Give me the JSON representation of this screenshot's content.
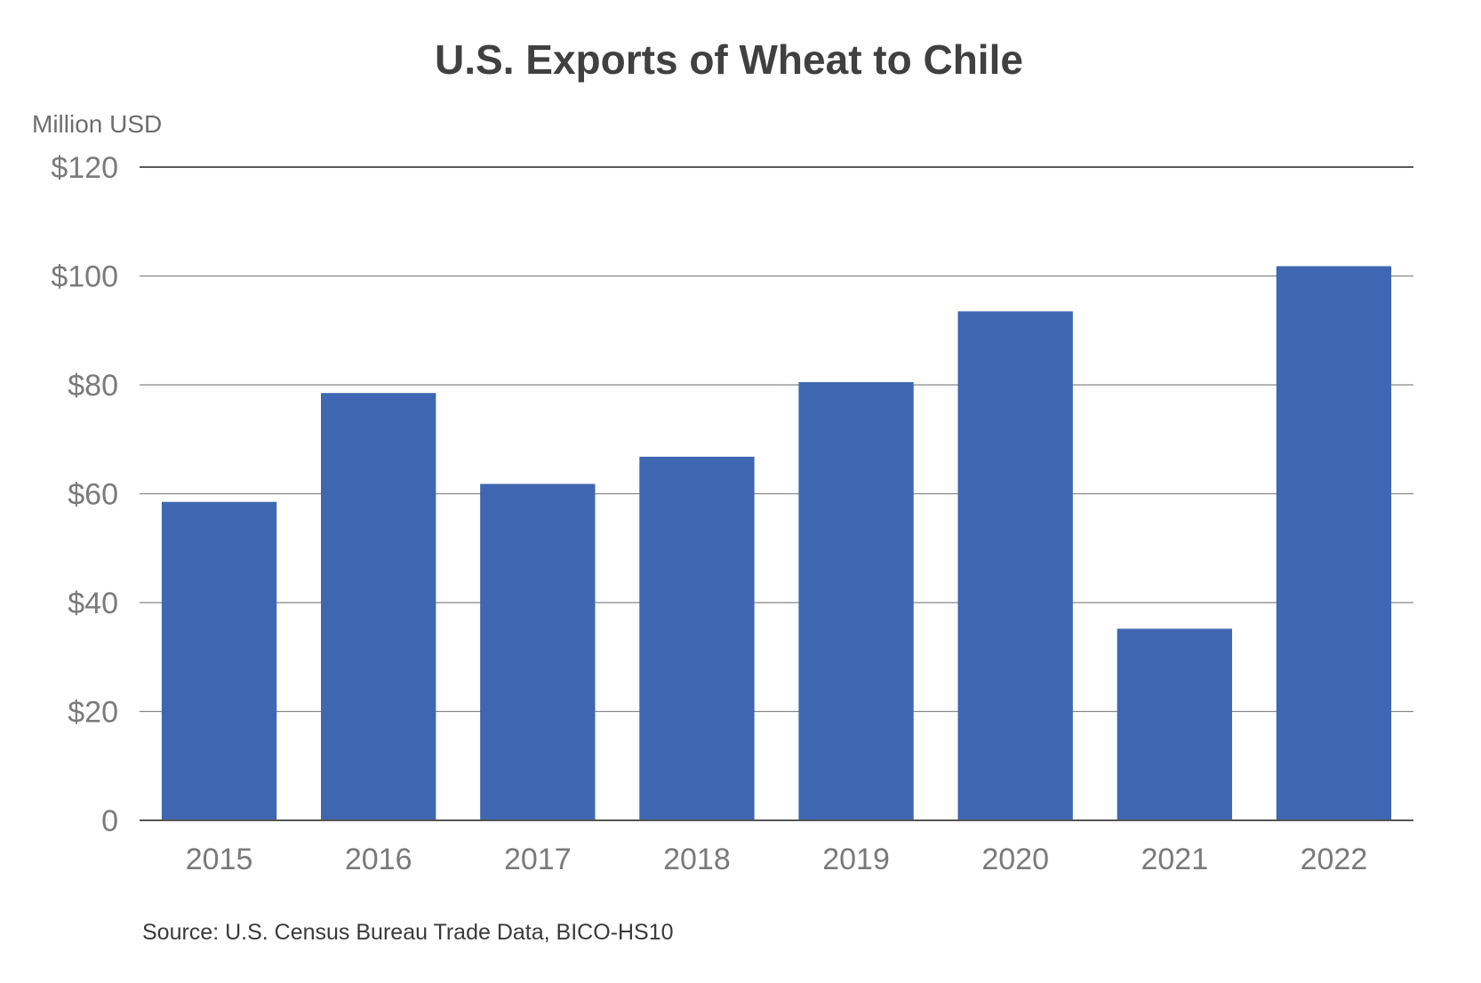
{
  "chart_data": {
    "type": "bar",
    "title": "U.S. Exports of Wheat to Chile",
    "ylabel": "Million USD",
    "xlabel": "",
    "categories": [
      "2015",
      "2016",
      "2017",
      "2018",
      "2019",
      "2020",
      "2021",
      "2022"
    ],
    "values": [
      58.5,
      78.5,
      61.8,
      66.8,
      80.5,
      93.5,
      35.2,
      101.8
    ],
    "ylim": [
      0,
      120
    ],
    "yticks": [
      0,
      20,
      40,
      60,
      80,
      100,
      120
    ],
    "ytick_labels": [
      "0",
      "$20",
      "$40",
      "$60",
      "$80",
      "$100",
      "$120"
    ],
    "grid": true,
    "bar_color": "#3f67b1",
    "source": "Source: U.S. Census Bureau Trade Data, BICO-HS10"
  }
}
